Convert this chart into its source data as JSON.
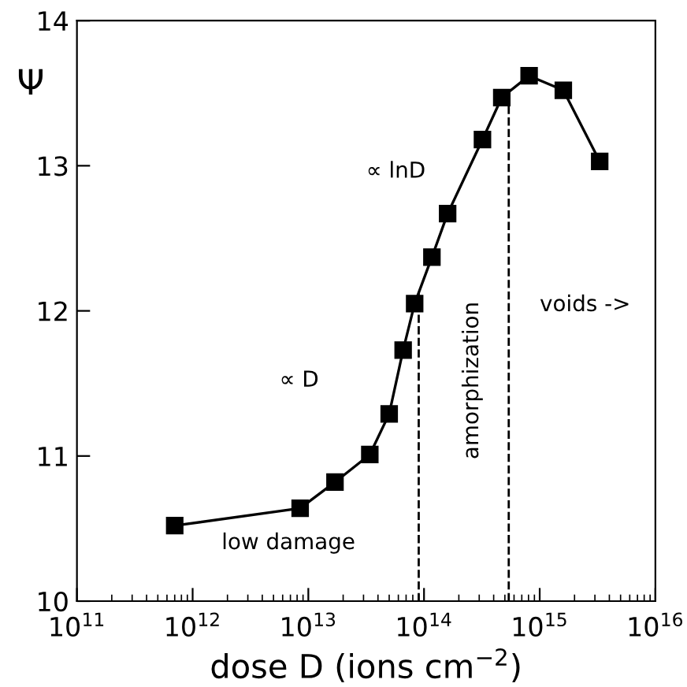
{
  "chart_data": {
    "type": "line",
    "xlabel": "dose D (ions cm$^{−2}$)",
    "ylabel": "Ψ",
    "log": "x",
    "marker": "square",
    "line_style": "solid",
    "xlim": [
      100000000000.0,
      1e+16
    ],
    "xticks": [
      {
        "value": 100000000000.0,
        "label": "10$^{11}$"
      },
      {
        "value": 1000000000000.0,
        "label": "10$^{12}$"
      },
      {
        "value": 10000000000000.0,
        "label": "10$^{13}$"
      },
      {
        "value": 100000000000000.0,
        "label": "10$^{14}$"
      },
      {
        "value": 1000000000000000.0,
        "label": "10$^{15}$"
      },
      {
        "value": 1e+16,
        "label": "10$^{16}$"
      }
    ],
    "ylim": [
      10,
      14
    ],
    "yticks": [
      10,
      11,
      12,
      13,
      14
    ],
    "x": [
      700000000000.0,
      8500000000000.0,
      17000000000000.0,
      34000000000000.0,
      50000000000000.0,
      66000000000000.0,
      83000000000000.0,
      117000000000000.0,
      160000000000000.0,
      320000000000000.0,
      470000000000000.0,
      810000000000000.0,
      1600000000000000.0,
      3300000000000000.0
    ],
    "series": [
      {
        "color": "#000000",
        "values": [
          10.52,
          10.64,
          10.82,
          11.01,
          11.29,
          11.73,
          12.05,
          12.37,
          12.67,
          13.18,
          13.47,
          13.62,
          13.52,
          13.03
        ]
      }
    ],
    "ref_lines": [
      {
        "axis": "x",
        "value": 90000000000000.0,
        "color": "#000000",
        "line_style": "dashed"
      },
      {
        "axis": "x",
        "value": 540000000000000.0,
        "color": "#000000",
        "line_style": "dashed"
      }
    ],
    "annotations": [
      "∝ lnD",
      "∝ D",
      "low damage",
      "amorphization",
      "voids ->"
    ]
  }
}
